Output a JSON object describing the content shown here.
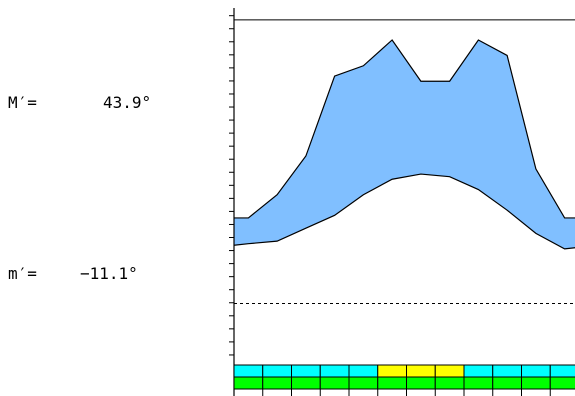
{
  "labels": {
    "max_name": "M′=",
    "max_value": "43.9°",
    "min_name": "m′=",
    "min_value": "−11.1°"
  },
  "chart_data": {
    "type": "area",
    "title": "",
    "xlabel": "",
    "ylabel": "",
    "x": [
      0,
      0.5,
      1.5,
      2.5,
      3.5,
      4.5,
      5.5,
      6.5,
      7.5,
      8.5,
      9.5,
      10.5,
      11.5,
      12
    ],
    "series": [
      {
        "values": [
          5.5,
          5.5,
          10.0,
          17.5,
          33.0,
          35.0,
          40.0,
          32.0,
          32.0,
          40.0,
          37.0,
          15.0,
          5.5,
          5.5
        ]
      },
      {
        "values": [
          0.2,
          0.5,
          1.0,
          3.5,
          6.0,
          10.0,
          13.0,
          14.0,
          13.5,
          11.0,
          7.0,
          2.5,
          -0.5,
          -0.2
        ]
      }
    ],
    "reference_lines": [
      {
        "value": 43.9,
        "style": "solid"
      },
      {
        "value": -11.1,
        "style": "dashed"
      }
    ],
    "ylim": [
      -23.6,
      46.2
    ],
    "ytick_step": 2.53,
    "month_bar_rows": [
      [
        "cyan",
        "cyan",
        "cyan",
        "cyan",
        "cyan",
        "yellow",
        "yellow",
        "yellow",
        "cyan",
        "cyan",
        "cyan",
        "cyan"
      ],
      [
        "green",
        "green",
        "green",
        "green",
        "green",
        "green",
        "green",
        "green",
        "green",
        "green",
        "green",
        "green"
      ]
    ],
    "colors": {
      "fill": "#80bfff",
      "stroke": "#000000",
      "cyan": "#00ffff",
      "yellow": "#ffff00",
      "green": "#00ff00"
    }
  }
}
